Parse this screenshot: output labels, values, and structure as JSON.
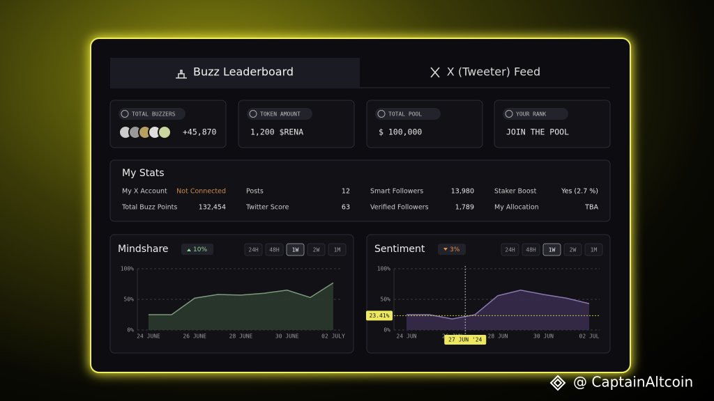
{
  "tabs": [
    "Buzz Leaderboard",
    "X (Tweeter) Feed"
  ],
  "active_tab": 0,
  "cards": [
    {
      "label": "TOTAL BUZZERS",
      "value": "+45,870"
    },
    {
      "label": "TOKEN AMOUNT",
      "value": "1,200 $RENA"
    },
    {
      "label": "TOTAL POOL",
      "value": "$ 100,000"
    },
    {
      "label": "YOUR RANK",
      "value": "JOIN THE POOL"
    }
  ],
  "stats": {
    "title": "My Stats",
    "items": [
      {
        "label": "My X Account",
        "value": "Not Connected"
      },
      {
        "label": "Total Buzz Points",
        "value": "132,454"
      },
      {
        "label": "Posts",
        "value": "12"
      },
      {
        "label": "Twitter Score",
        "value": "63"
      },
      {
        "label": "Smart Followers",
        "value": "13,980"
      },
      {
        "label": "Verified Followers",
        "value": "1,789"
      },
      {
        "label": "Staker Boost",
        "value": "Yes (2.7 %)"
      },
      {
        "label": "My Allocation",
        "value": "TBA"
      }
    ]
  },
  "charts": [
    {
      "type": "area",
      "title": "Mindshare",
      "change": "10%",
      "change_color": "#8fd49a",
      "ranges": [
        "24H",
        "48H",
        "1W",
        "2W",
        "1M"
      ],
      "selected_range": 2,
      "categories": [
        "24 JUNE",
        null,
        "26 JUNE",
        null,
        "28 JUNE",
        null,
        "30 JUNE",
        null,
        "02 JULY"
      ],
      "values": [
        25,
        25,
        52,
        58,
        57,
        60,
        65,
        53,
        77
      ],
      "color": "#7d9a7f",
      "fill": "#2b3a2e",
      "ylim": [
        0,
        100
      ],
      "yticks": [
        {
          "value": 0,
          "label": "0%"
        },
        {
          "value": 50,
          "label": "50%"
        },
        {
          "value": 100,
          "label": "100%"
        }
      ],
      "grid": true
    },
    {
      "type": "area",
      "title": "Sentiment",
      "change": "3%",
      "change_color": "#e0904a",
      "ranges": [
        "24H",
        "48H",
        "1W",
        "2W",
        "1M"
      ],
      "selected_range": 2,
      "categories": [
        "24 JUN",
        null,
        "26 JUN",
        null,
        "28 JUN",
        null,
        "30 JUN",
        null,
        "02 JUL"
      ],
      "values": [
        25,
        25,
        18,
        25,
        56,
        65,
        58,
        52,
        43
      ],
      "color": "#8a78b0",
      "fill": "#372c4c",
      "ylim": [
        0,
        100
      ],
      "yticks": [
        {
          "value": 0,
          "label": "0%"
        },
        {
          "value": 50,
          "label": "50%"
        },
        {
          "value": 100,
          "label": "100%"
        }
      ],
      "grid": true,
      "crosshair": {
        "x_label": "27 JUN '24",
        "y": 23.41,
        "y_label": "23.41%"
      }
    }
  ],
  "watermark": "@ CaptainAltcoin"
}
